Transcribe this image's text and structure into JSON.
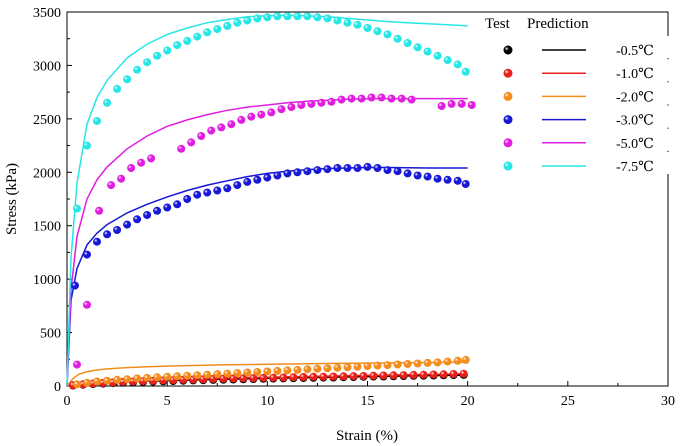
{
  "chart_data": {
    "type": "scatter",
    "title": "",
    "xlabel": "Strain (%)",
    "ylabel": "Stress (kPa)",
    "xlim": [
      0,
      30
    ],
    "ylim": [
      0,
      3500
    ],
    "xticks": [
      0,
      5,
      10,
      15,
      20,
      25,
      30
    ],
    "yticks": [
      0,
      500,
      1000,
      1500,
      2000,
      2500,
      3000,
      3500
    ],
    "grid": false,
    "legend": {
      "position": "top-right",
      "header_test": "Test",
      "header_prediction": "Prediction"
    },
    "series": [
      {
        "name": "-0.5℃",
        "color": "#000000",
        "test_x": [
          0.3,
          0.8,
          1.3,
          1.8,
          2.3,
          2.8,
          3.3,
          3.8,
          4.3,
          4.8,
          5.3,
          5.8,
          6.3,
          6.8,
          7.3,
          7.8,
          8.3,
          8.8,
          9.3,
          9.8,
          10.3,
          10.8,
          11.3,
          11.8,
          12.3,
          12.8,
          13.3,
          13.8,
          14.3,
          14.8,
          15.3,
          15.8,
          16.3,
          16.8,
          17.3,
          17.8,
          18.3,
          18.8,
          19.3,
          19.8
        ],
        "test_y": [
          5,
          12,
          18,
          22,
          27,
          31,
          35,
          38,
          41,
          44,
          47,
          50,
          52,
          54,
          57,
          59,
          61,
          63,
          65,
          67,
          69,
          71,
          73,
          75,
          77,
          79,
          80,
          82,
          84,
          86,
          88,
          89,
          91,
          93,
          95,
          96,
          98,
          100,
          102,
          104
        ],
        "pred_x": [
          0,
          0.5,
          1,
          2,
          3,
          4,
          5,
          6,
          8,
          10,
          12,
          14,
          16,
          18,
          20
        ],
        "pred_y": [
          0,
          12,
          20,
          30,
          38,
          45,
          51,
          56,
          65,
          72,
          79,
          85,
          91,
          97,
          102
        ]
      },
      {
        "name": "-1.0℃",
        "color": "#e8221a",
        "test_x": [
          0.3,
          0.8,
          1.3,
          1.8,
          2.3,
          2.8,
          3.3,
          3.8,
          4.3,
          4.8,
          5.3,
          5.8,
          6.3,
          6.8,
          7.3,
          7.8,
          8.3,
          8.8,
          9.3,
          9.8,
          10.3,
          10.8,
          11.3,
          11.8,
          12.3,
          12.8,
          13.3,
          13.8,
          14.3,
          14.8,
          15.3,
          15.8,
          16.3,
          16.8,
          17.3,
          17.8,
          18.3,
          18.8,
          19.3,
          19.8
        ],
        "test_y": [
          8,
          16,
          23,
          29,
          34,
          38,
          42,
          46,
          49,
          52,
          55,
          58,
          61,
          63,
          66,
          68,
          70,
          72,
          74,
          76,
          78,
          80,
          82,
          84,
          86,
          87,
          89,
          91,
          93,
          94,
          96,
          98,
          100,
          102,
          104,
          106,
          108,
          110,
          112,
          115
        ],
        "pred_x": [
          0,
          0.5,
          1,
          2,
          3,
          4,
          5,
          6,
          8,
          10,
          12,
          14,
          16,
          18,
          20
        ],
        "pred_y": [
          0,
          16,
          26,
          38,
          47,
          54,
          60,
          65,
          74,
          82,
          89,
          96,
          102,
          108,
          114
        ]
      },
      {
        "name": "-2.0℃",
        "color": "#f28c1c",
        "test_x": [
          0.5,
          1.0,
          1.5,
          2.0,
          2.5,
          3.0,
          3.5,
          4.0,
          4.5,
          5.0,
          5.5,
          6.0,
          6.5,
          7.0,
          7.5,
          8.0,
          8.5,
          9.0,
          9.5,
          10.0,
          10.5,
          11.0,
          11.5,
          12.0,
          12.5,
          13.0,
          13.5,
          14.0,
          14.5,
          15.0,
          15.5,
          16.0,
          16.5,
          17.0,
          17.5,
          18.0,
          18.5,
          19.0,
          19.5,
          19.9
        ],
        "test_y": [
          15,
          30,
          42,
          50,
          58,
          64,
          70,
          76,
          81,
          86,
          91,
          96,
          101,
          106,
          111,
          116,
          121,
          126,
          131,
          136,
          141,
          146,
          151,
          156,
          161,
          166,
          171,
          176,
          181,
          186,
          191,
          196,
          201,
          206,
          211,
          216,
          221,
          228,
          236,
          244
        ],
        "pred_x": [
          0,
          0.3,
          0.6,
          1,
          1.5,
          2,
          3,
          4,
          5,
          6,
          8,
          10,
          12,
          14,
          16,
          18,
          20
        ],
        "pred_y": [
          0,
          70,
          110,
          135,
          150,
          160,
          172,
          180,
          186,
          191,
          198,
          203,
          208,
          212,
          216,
          220,
          224
        ]
      },
      {
        "name": "-3.0℃",
        "color": "#1717d6",
        "test_x": [
          0.4,
          1.0,
          1.5,
          2.0,
          2.5,
          3.0,
          3.5,
          4.0,
          4.5,
          5.0,
          5.5,
          6.0,
          6.5,
          7.0,
          7.5,
          8.0,
          8.5,
          9.0,
          9.5,
          10.0,
          10.5,
          11.0,
          11.5,
          12.0,
          12.5,
          13.0,
          13.5,
          14.0,
          14.5,
          15.0,
          15.5,
          16.0,
          16.5,
          17.0,
          17.5,
          18.0,
          18.5,
          19.0,
          19.5,
          19.9
        ],
        "test_y": [
          940,
          1230,
          1350,
          1420,
          1460,
          1510,
          1560,
          1600,
          1640,
          1670,
          1700,
          1750,
          1790,
          1810,
          1830,
          1850,
          1880,
          1910,
          1930,
          1950,
          1970,
          1990,
          2000,
          2010,
          2020,
          2030,
          2040,
          2040,
          2040,
          2050,
          2040,
          2020,
          2010,
          1990,
          1970,
          1960,
          1940,
          1930,
          1920,
          1890
        ],
        "pred_x": [
          0,
          0.2,
          0.5,
          1,
          1.5,
          2,
          3,
          4,
          5,
          6,
          7,
          8,
          9,
          10,
          11,
          12,
          13,
          14,
          15,
          16,
          17,
          18,
          19,
          20
        ],
        "pred_y": [
          0,
          800,
          1100,
          1320,
          1430,
          1510,
          1620,
          1700,
          1770,
          1830,
          1880,
          1920,
          1960,
          1990,
          2010,
          2025,
          2035,
          2040,
          2045,
          2045,
          2043,
          2040,
          2040,
          2040
        ],
        "note": "prediction curve for -3.0 extends to strain 20"
      },
      {
        "name": "-5.0℃",
        "color": "#e01ee0",
        "test_x": [
          0.5,
          1.0,
          1.6,
          2.2,
          2.7,
          3.2,
          3.7,
          4.2,
          5.7,
          6.2,
          6.7,
          7.2,
          7.7,
          8.2,
          8.7,
          9.2,
          9.7,
          10.2,
          10.7,
          11.2,
          11.7,
          12.2,
          12.7,
          13.2,
          13.7,
          14.2,
          14.7,
          15.2,
          15.7,
          16.2,
          16.7,
          17.2,
          18.7,
          19.2,
          19.7,
          20.2
        ],
        "test_y": [
          200,
          760,
          1640,
          1880,
          1940,
          2040,
          2090,
          2130,
          2220,
          2280,
          2340,
          2390,
          2420,
          2450,
          2490,
          2520,
          2540,
          2560,
          2590,
          2610,
          2630,
          2640,
          2650,
          2660,
          2680,
          2690,
          2690,
          2700,
          2700,
          2690,
          2690,
          2680,
          2620,
          2640,
          2640,
          2630
        ],
        "pred_x": [
          0,
          0.2,
          0.5,
          1,
          1.5,
          2,
          3,
          4,
          5,
          6,
          7,
          8,
          9,
          10,
          11,
          12,
          13,
          14,
          15,
          16,
          17,
          18,
          19,
          20
        ],
        "pred_y": [
          0,
          900,
          1400,
          1750,
          1930,
          2050,
          2220,
          2340,
          2430,
          2490,
          2540,
          2580,
          2610,
          2630,
          2650,
          2665,
          2675,
          2683,
          2688,
          2690,
          2690,
          2690,
          2690,
          2690
        ]
      },
      {
        "name": "-7.5℃",
        "color": "#27e6e6",
        "test_x": [
          0.5,
          1.0,
          1.5,
          2.0,
          2.5,
          3.0,
          3.5,
          4.0,
          4.5,
          5.0,
          5.5,
          6.0,
          6.5,
          7.0,
          7.5,
          8.0,
          8.5,
          9.0,
          9.5,
          10.0,
          10.5,
          11.0,
          11.5,
          12.0,
          12.5,
          13.0,
          13.5,
          14.0,
          14.5,
          15.0,
          15.5,
          16.0,
          16.5,
          17.0,
          17.5,
          18.0,
          18.5,
          19.0,
          19.5,
          19.9
        ],
        "test_y": [
          1660,
          2250,
          2480,
          2650,
          2780,
          2870,
          2960,
          3030,
          3090,
          3140,
          3190,
          3230,
          3270,
          3310,
          3340,
          3370,
          3400,
          3420,
          3440,
          3450,
          3460,
          3460,
          3460,
          3460,
          3450,
          3440,
          3420,
          3400,
          3380,
          3350,
          3320,
          3290,
          3250,
          3210,
          3170,
          3130,
          3090,
          3050,
          3010,
          2940
        ],
        "pred_x": [
          0,
          0.2,
          0.5,
          1,
          1.5,
          2,
          3,
          4,
          5,
          6,
          7,
          8,
          9,
          10,
          11,
          12,
          13,
          14,
          15,
          16,
          17,
          18,
          19,
          20
        ],
        "pred_y": [
          0,
          1200,
          1900,
          2450,
          2700,
          2860,
          3070,
          3200,
          3290,
          3350,
          3400,
          3430,
          3455,
          3465,
          3470,
          3465,
          3455,
          3440,
          3425,
          3410,
          3400,
          3390,
          3380,
          3370
        ]
      }
    ]
  }
}
